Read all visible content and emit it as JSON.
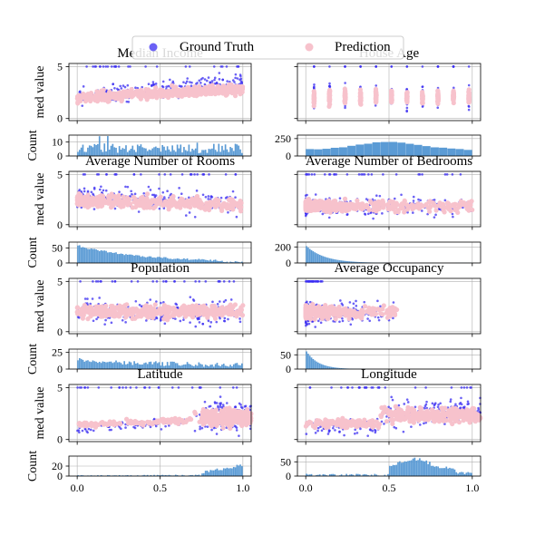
{
  "legend": {
    "items": [
      {
        "label": "Ground Truth",
        "color": "#3a2cf2"
      },
      {
        "label": "Prediction",
        "color": "#f7c2cc"
      }
    ],
    "placement": "top-center"
  },
  "colors": {
    "ground_truth": "#3a2cf2",
    "prediction": "#f7c2cc",
    "histogram": "#5b9bd5",
    "grid": "#b0b0b0"
  },
  "shared": {
    "x_ticks": [
      "0.0",
      "0.5",
      "1.0"
    ],
    "x_tick_values": [
      0,
      0.5,
      1
    ],
    "scatter_ylabel": "med value",
    "hist_ylabel": "Count",
    "xlim": [
      -0.05,
      1.05
    ]
  },
  "chart_data": [
    {
      "type": "scatter",
      "title": "Median Income",
      "ylabel": "med value",
      "ylim": [
        -0.2,
        5.3
      ],
      "y_ticks": [
        "0",
        "5"
      ],
      "y_tick_values": [
        0,
        5
      ],
      "show_y_ticks": true,
      "grid": true,
      "pattern": "income",
      "hist": {
        "type": "bar",
        "ylabel": "Count",
        "ylim": [
          0,
          15
        ],
        "y_ticks": [
          "0",
          "10"
        ],
        "y_tick_values": [
          0,
          10
        ],
        "bins": 100,
        "pattern": "noise_low"
      }
    },
    {
      "type": "scatter",
      "title": "House Age",
      "ylabel": "",
      "ylim": [
        -0.2,
        5.3
      ],
      "y_ticks": [],
      "y_tick_values": [],
      "show_y_ticks": false,
      "grid": true,
      "pattern": "age",
      "hist": {
        "type": "bar",
        "ylabel": "",
        "ylim": [
          0,
          300
        ],
        "y_ticks": [
          "0",
          "250"
        ],
        "y_tick_values": [
          0,
          250
        ],
        "bins": 20,
        "pattern": "age_bell"
      }
    },
    {
      "type": "scatter",
      "title": "Average Number of Rooms",
      "ylabel": "med value",
      "ylim": [
        -0.2,
        5.3
      ],
      "y_ticks": [
        "0",
        "5"
      ],
      "y_tick_values": [
        0,
        5
      ],
      "show_y_ticks": true,
      "grid": true,
      "pattern": "rooms",
      "hist": {
        "type": "bar",
        "ylabel": "Count",
        "ylim": [
          0,
          70
        ],
        "y_ticks": [
          "0",
          "50"
        ],
        "y_tick_values": [
          0,
          50
        ],
        "bins": 100,
        "pattern": "decay_slow"
      }
    },
    {
      "type": "scatter",
      "title": "Average Number of Bedrooms",
      "ylabel": "",
      "ylim": [
        -0.2,
        5.3
      ],
      "y_ticks": [],
      "y_tick_values": [],
      "show_y_ticks": false,
      "grid": true,
      "pattern": "bedrooms",
      "hist": {
        "type": "bar",
        "ylabel": "",
        "ylim": [
          0,
          260
        ],
        "y_ticks": [
          "0",
          "200"
        ],
        "y_tick_values": [
          0,
          200
        ],
        "bins": 100,
        "pattern": "decay_fast"
      }
    },
    {
      "type": "scatter",
      "title": "Population",
      "ylabel": "med value",
      "ylim": [
        -0.2,
        5.3
      ],
      "y_ticks": [
        "0",
        "5"
      ],
      "y_tick_values": [
        0,
        5
      ],
      "show_y_ticks": true,
      "grid": true,
      "pattern": "population",
      "hist": {
        "type": "bar",
        "ylabel": "Count",
        "ylim": [
          0,
          30
        ],
        "y_ticks": [
          "0",
          "25"
        ],
        "y_tick_values": [
          0,
          25
        ],
        "bins": 100,
        "pattern": "pop_noise"
      }
    },
    {
      "type": "scatter",
      "title": "Average Occupancy",
      "ylabel": "",
      "ylim": [
        -0.2,
        5.3
      ],
      "y_ticks": [],
      "y_tick_values": [],
      "show_y_ticks": false,
      "grid": true,
      "pattern": "occupancy",
      "hist": {
        "type": "bar",
        "ylabel": "",
        "ylim": [
          0,
          70
        ],
        "y_ticks": [
          "0",
          "50"
        ],
        "y_tick_values": [
          0,
          50
        ],
        "bins": 100,
        "pattern": "decay_veryfast"
      }
    },
    {
      "type": "scatter",
      "title": "Latitude",
      "ylabel": "med value",
      "ylim": [
        -0.2,
        5.3
      ],
      "y_ticks": [
        "0",
        "5"
      ],
      "y_tick_values": [
        0,
        5
      ],
      "show_y_ticks": true,
      "grid": true,
      "pattern": "latitude",
      "hist": {
        "type": "bar",
        "ylabel": "Count",
        "ylim": [
          0,
          40
        ],
        "y_ticks": [
          "0",
          "20"
        ],
        "y_tick_values": [
          0,
          20
        ],
        "bins": 100,
        "pattern": "lat_hist"
      }
    },
    {
      "type": "scatter",
      "title": "Longitude",
      "ylabel": "",
      "ylim": [
        -0.2,
        5.3
      ],
      "y_ticks": [],
      "y_tick_values": [],
      "show_y_ticks": false,
      "grid": true,
      "pattern": "longitude",
      "hist": {
        "type": "bar",
        "ylabel": "",
        "ylim": [
          0,
          70
        ],
        "y_ticks": [
          "0",
          "50"
        ],
        "y_tick_values": [
          0,
          50
        ],
        "bins": 100,
        "pattern": "lon_hist"
      }
    }
  ]
}
